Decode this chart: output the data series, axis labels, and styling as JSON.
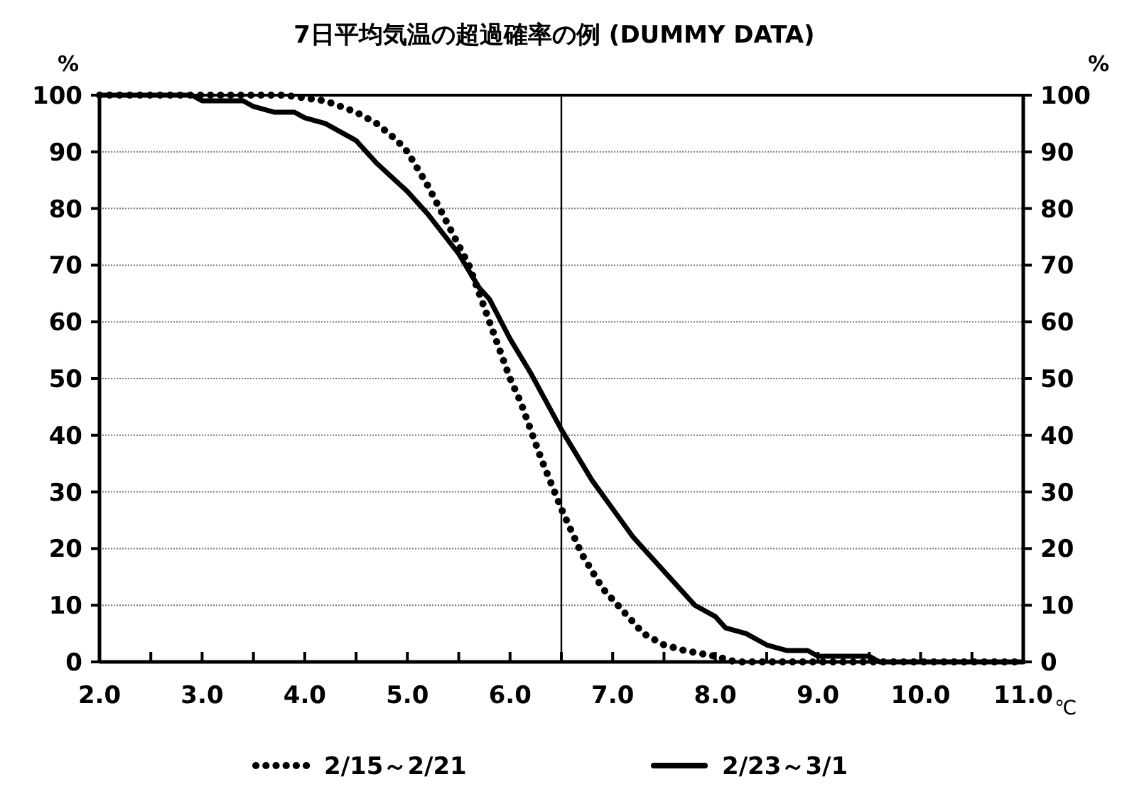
{
  "chart_data": {
    "type": "line",
    "title": "7日平均気温の超過確率の例 (DUMMY DATA)",
    "xlabel": "℃",
    "ylabel": "%",
    "y2label": "%",
    "xlim": [
      2,
      11
    ],
    "xticks": [
      {
        "value": 2,
        "label": "2.0"
      },
      {
        "value": 2.5,
        "label": null
      },
      {
        "value": 3,
        "label": "3.0"
      },
      {
        "value": 3.5,
        "label": null
      },
      {
        "value": 4,
        "label": "4.0"
      },
      {
        "value": 4.5,
        "label": null
      },
      {
        "value": 5,
        "label": "5.0"
      },
      {
        "value": 5.5,
        "label": null
      },
      {
        "value": 6,
        "label": "6.0"
      },
      {
        "value": 6.5,
        "label": null
      },
      {
        "value": 7,
        "label": "7.0"
      },
      {
        "value": 7.5,
        "label": null
      },
      {
        "value": 8,
        "label": "8.0"
      },
      {
        "value": 8.5,
        "label": null
      },
      {
        "value": 9,
        "label": "9.0"
      },
      {
        "value": 9.5,
        "label": null
      },
      {
        "value": 10,
        "label": "10.0"
      },
      {
        "value": 10.5,
        "label": null
      },
      {
        "value": 11,
        "label": "11.0"
      }
    ],
    "ylim": [
      0,
      100
    ],
    "yticks": [
      0,
      10,
      20,
      30,
      40,
      50,
      60,
      70,
      80,
      90,
      100
    ],
    "y2lim": [
      0,
      100
    ],
    "y2ticks": [
      0,
      10,
      20,
      30,
      40,
      50,
      60,
      70,
      80,
      90,
      100
    ],
    "grid": "y",
    "legend": "bottom",
    "ref_lines": [
      {
        "axis": "x",
        "value": 6.5,
        "color": "#000000"
      }
    ],
    "series": [
      {
        "name": "2/15～2/21",
        "color": "#000000",
        "line_style": "dotted",
        "x": [
          2.0,
          3.8,
          4.2,
          4.5,
          4.7,
          4.9,
          5.0,
          5.2,
          5.4,
          5.6,
          5.8,
          6.0,
          6.1,
          6.3,
          6.5,
          6.7,
          6.9,
          7.1,
          7.3,
          7.5,
          7.7,
          8.0,
          8.2,
          11.0
        ],
        "values": [
          100,
          100,
          99,
          97,
          95,
          92,
          90,
          84,
          77,
          70,
          60,
          50,
          46,
          36,
          27,
          19,
          13,
          9,
          5,
          3,
          2,
          1,
          0,
          0
        ]
      },
      {
        "name": "2/23～3/1",
        "color": "#000000",
        "line_style": "solid",
        "x": [
          2.0,
          2.9,
          3.0,
          3.4,
          3.5,
          3.7,
          3.9,
          4.0,
          4.2,
          4.5,
          4.7,
          5.0,
          5.2,
          5.5,
          5.7,
          5.8,
          6.0,
          6.2,
          6.5,
          6.8,
          7.0,
          7.2,
          7.5,
          7.8,
          8.0,
          8.1,
          8.3,
          8.5,
          8.7,
          8.9,
          9.0,
          9.5,
          9.6,
          11.0
        ],
        "values": [
          100,
          100,
          99,
          99,
          98,
          97,
          97,
          96,
          95,
          92,
          88,
          83,
          79,
          72,
          66,
          64,
          57,
          51,
          41,
          32,
          27,
          22,
          16,
          10,
          8,
          6,
          5,
          3,
          2,
          2,
          1,
          1,
          0,
          0
        ]
      }
    ]
  }
}
